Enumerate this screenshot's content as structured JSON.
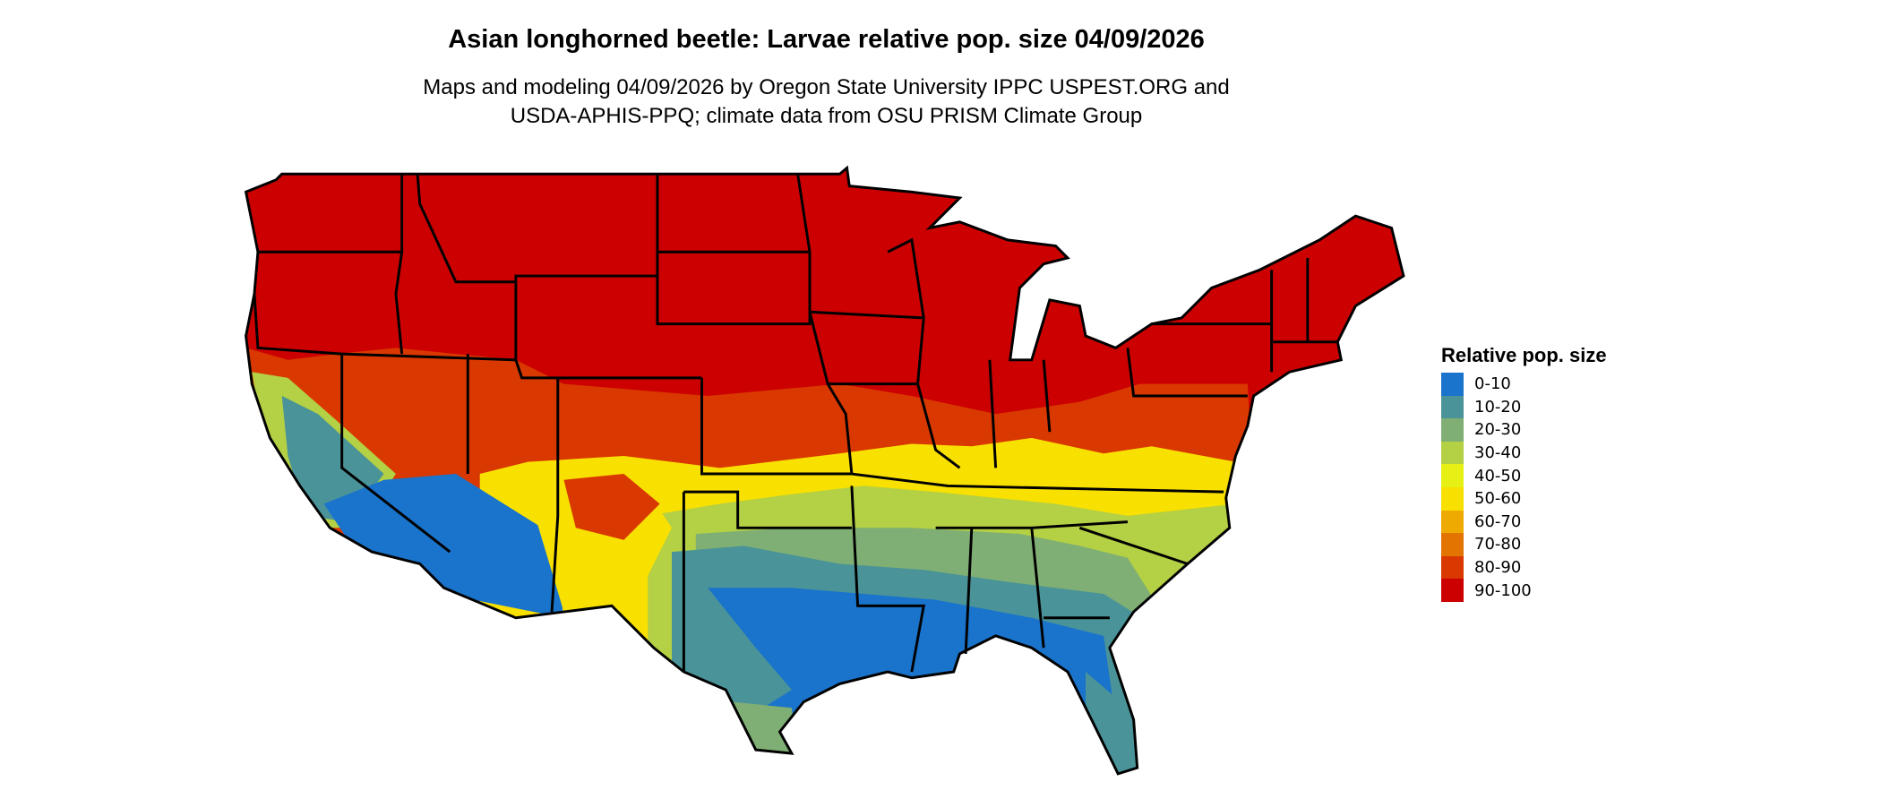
{
  "title": "Asian longhorned beetle: Larvae relative pop. size 04/09/2026",
  "subtitle_lines": [
    "Maps and modeling 04/09/2026 by Oregon State University IPPC USPEST.ORG and",
    "USDA-APHIS-PPQ; climate data from OSU PRISM Climate Group"
  ],
  "legend": {
    "title": "Relative pop. size",
    "items": [
      {
        "label": "0-10",
        "color": "#1a74cc"
      },
      {
        "label": "10-20",
        "color": "#4a9398"
      },
      {
        "label": "20-30",
        "color": "#7faf74"
      },
      {
        "label": "30-40",
        "color": "#b4d044"
      },
      {
        "label": "40-50",
        "color": "#e6f014"
      },
      {
        "label": "50-60",
        "color": "#f8e000"
      },
      {
        "label": "60-70",
        "color": "#eeaa00"
      },
      {
        "label": "70-80",
        "color": "#e37400"
      },
      {
        "label": "80-90",
        "color": "#d93800"
      },
      {
        "label": "90-100",
        "color": "#cc0000"
      }
    ]
  }
}
